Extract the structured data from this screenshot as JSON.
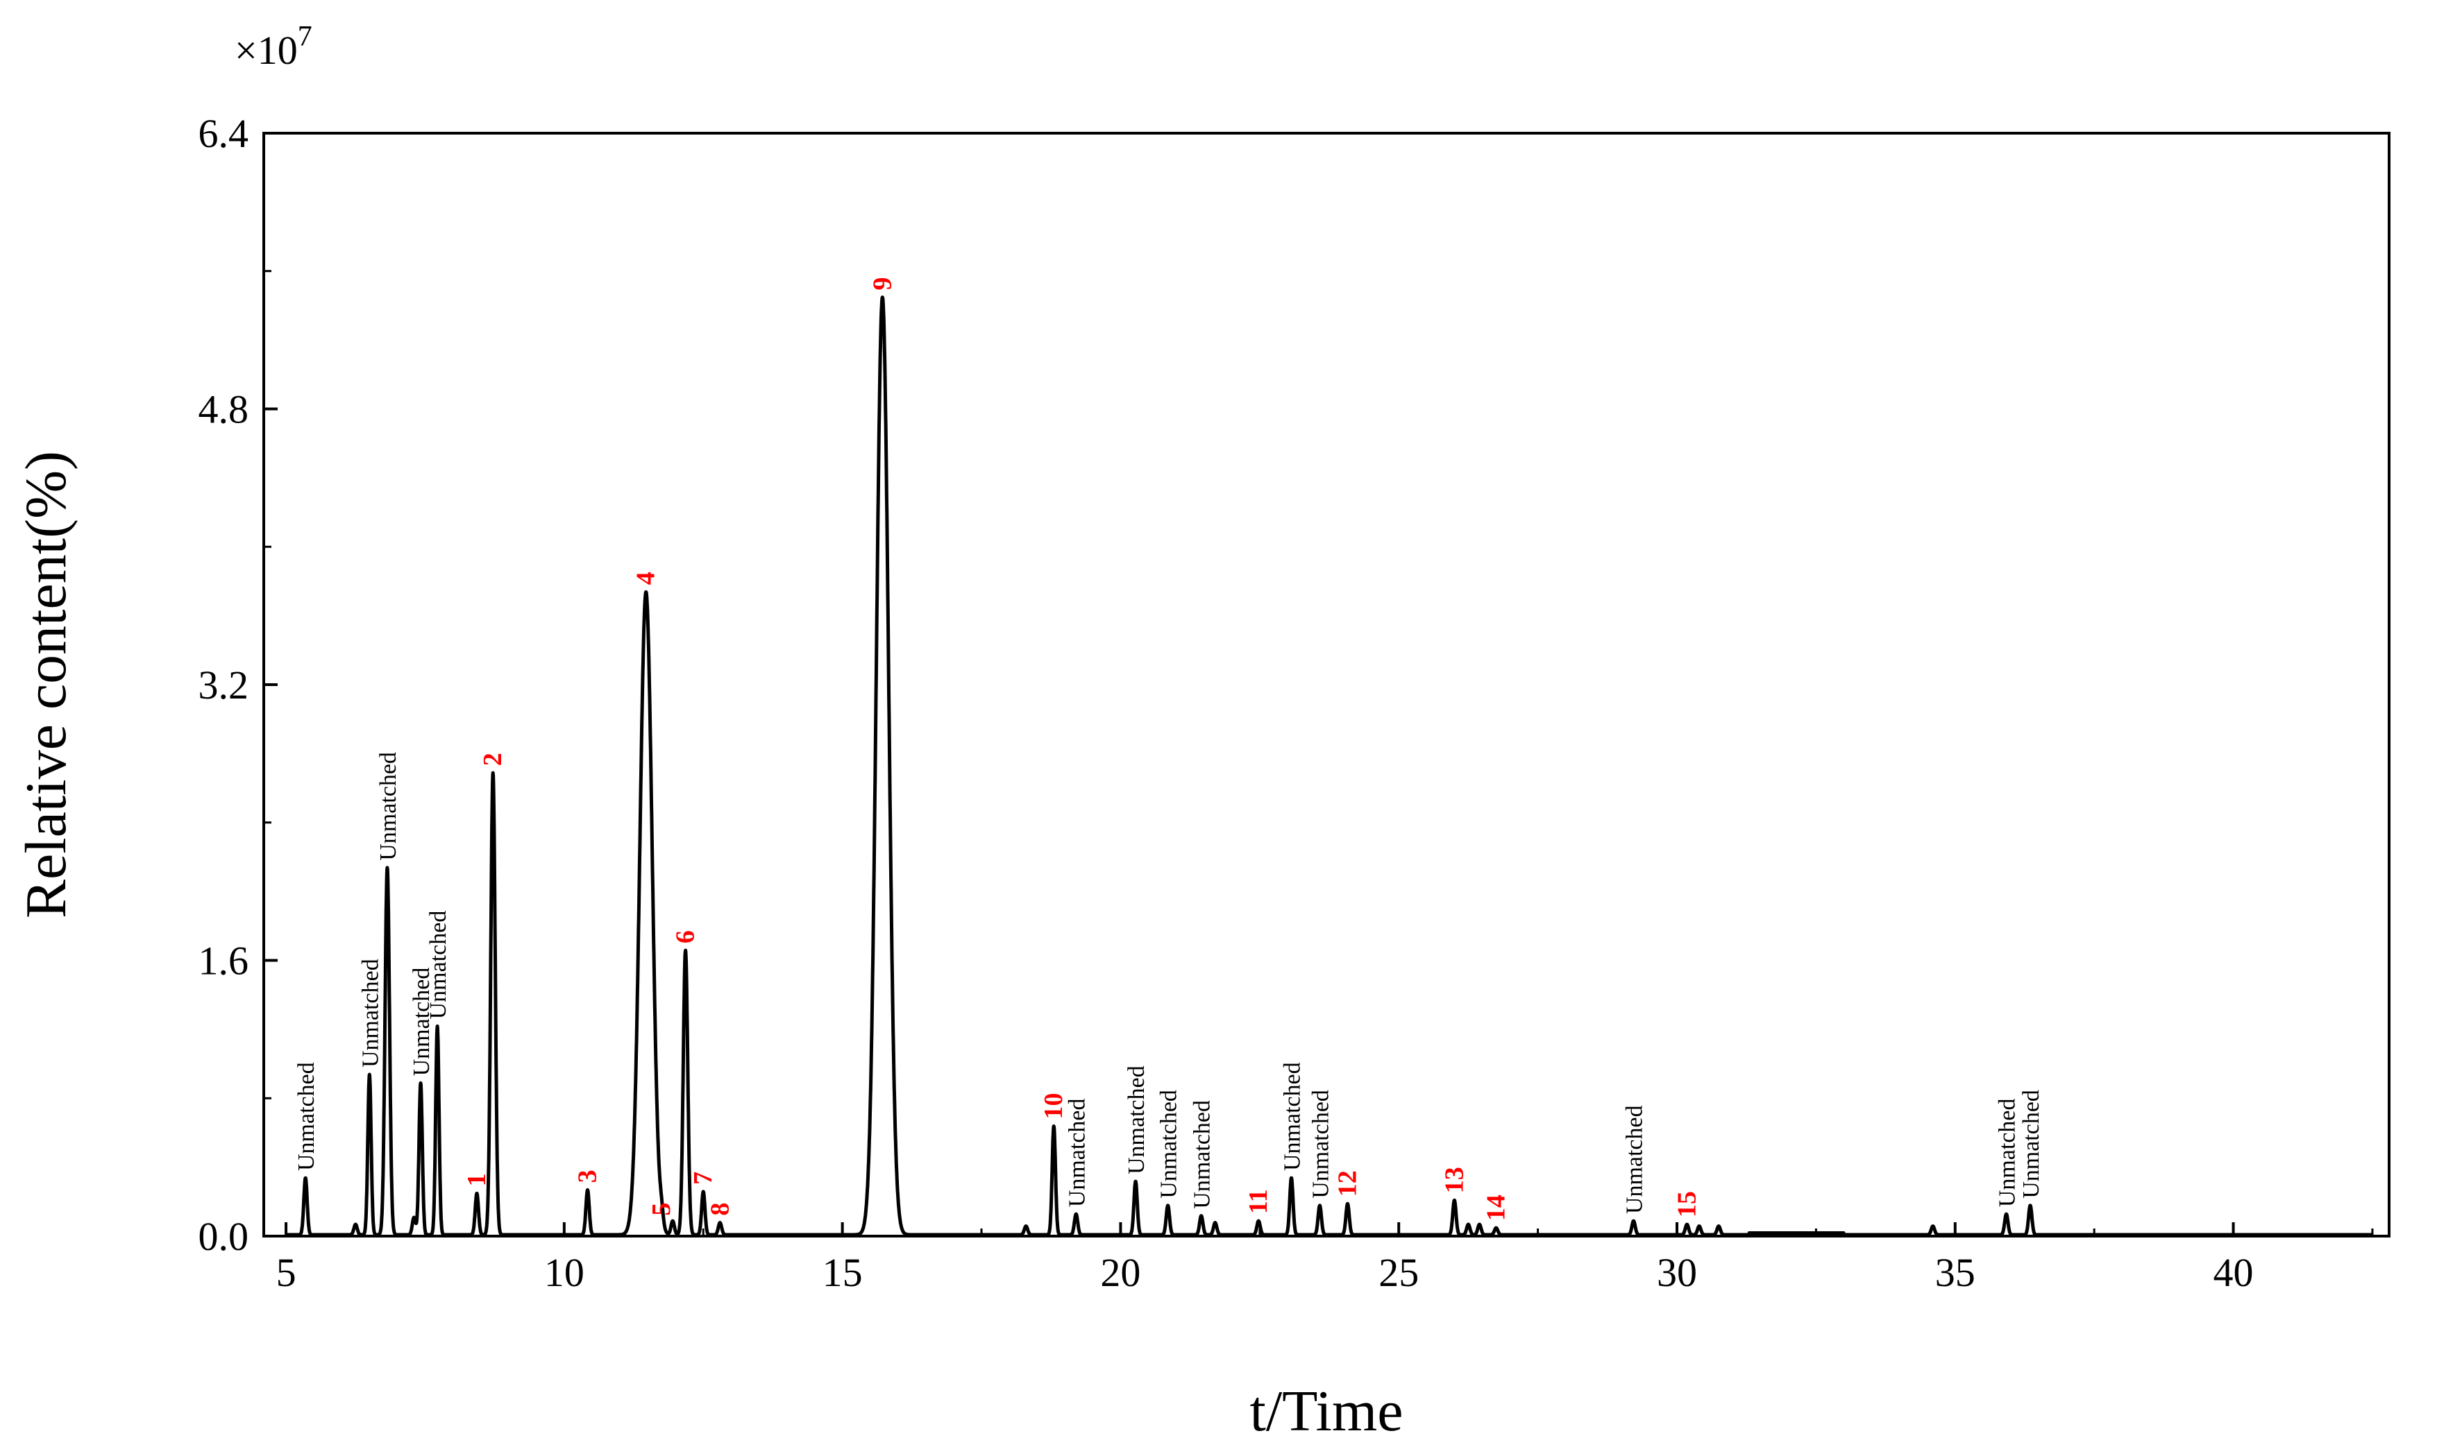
{
  "chart_data": {
    "type": "line",
    "title": "",
    "xlabel": "t/Time",
    "ylabel": "Relative content(%)",
    "y_multiplier_label": "×10",
    "y_multiplier_exponent": "7",
    "xlim": [
      4.6,
      42.8
    ],
    "ylim": [
      0,
      6.4
    ],
    "x_ticks": [
      5,
      10,
      15,
      20,
      25,
      30,
      35,
      40
    ],
    "x_tick_labels": [
      "5",
      "10",
      "15",
      "20",
      "25",
      "30",
      "35",
      "40"
    ],
    "y_ticks": [
      0,
      1.6,
      3.2,
      4.8,
      6.4
    ],
    "y_tick_labels": [
      "0.0",
      "1.6",
      "3.2",
      "4.8",
      "6.4"
    ],
    "grid": false,
    "line_color": "#000000",
    "annotation_color_numbered": "#ff0000",
    "annotation_color_unmatched": "#000000",
    "series": [
      {
        "peaks": [
          {
            "x": 5.35,
            "y": 0.33,
            "label": "Unmatched",
            "kind": "text"
          },
          {
            "x": 6.25,
            "y": 0.06,
            "label": "",
            "kind": ""
          },
          {
            "x": 6.5,
            "y": 0.93,
            "label": "Unmatched",
            "kind": "text"
          },
          {
            "x": 6.82,
            "y": 2.13,
            "label": "Unmatched",
            "kind": "text"
          },
          {
            "x": 7.3,
            "y": 0.1,
            "label": "",
            "kind": ""
          },
          {
            "x": 7.42,
            "y": 0.88,
            "label": "Unmatched",
            "kind": "text"
          },
          {
            "x": 7.72,
            "y": 1.21,
            "label": "Unmatched",
            "kind": "text"
          },
          {
            "x": 8.43,
            "y": 0.24,
            "label": "1",
            "kind": "number"
          },
          {
            "x": 8.72,
            "y": 2.68,
            "label": "2",
            "kind": "number"
          },
          {
            "x": 10.42,
            "y": 0.26,
            "label": "3",
            "kind": "number"
          },
          {
            "x": 11.47,
            "y": 3.73,
            "label": "4",
            "kind": "number"
          },
          {
            "x": 11.75,
            "y": 0.07,
            "label": "5",
            "kind": "number"
          },
          {
            "x": 11.95,
            "y": 0.08,
            "label": "",
            "kind": ""
          },
          {
            "x": 12.18,
            "y": 1.65,
            "label": "6",
            "kind": "number"
          },
          {
            "x": 12.5,
            "y": 0.25,
            "label": "7",
            "kind": "number"
          },
          {
            "x": 12.8,
            "y": 0.07,
            "label": "8",
            "kind": "number"
          },
          {
            "x": 15.72,
            "y": 5.44,
            "label": "9",
            "kind": "number"
          },
          {
            "x": 18.3,
            "y": 0.05,
            "label": "",
            "kind": ""
          },
          {
            "x": 18.8,
            "y": 0.63,
            "label": "10",
            "kind": "number"
          },
          {
            "x": 19.2,
            "y": 0.12,
            "label": "Unmatched",
            "kind": "text"
          },
          {
            "x": 20.27,
            "y": 0.31,
            "label": "Unmatched",
            "kind": "text"
          },
          {
            "x": 20.85,
            "y": 0.17,
            "label": "Unmatched",
            "kind": "text"
          },
          {
            "x": 21.45,
            "y": 0.11,
            "label": "Unmatched",
            "kind": "text"
          },
          {
            "x": 21.7,
            "y": 0.07,
            "label": "",
            "kind": ""
          },
          {
            "x": 22.48,
            "y": 0.08,
            "label": "11",
            "kind": "number"
          },
          {
            "x": 23.07,
            "y": 0.33,
            "label": "Unmatched",
            "kind": "text"
          },
          {
            "x": 23.58,
            "y": 0.17,
            "label": "Unmatched",
            "kind": "text"
          },
          {
            "x": 24.08,
            "y": 0.18,
            "label": "12",
            "kind": "number"
          },
          {
            "x": 26.0,
            "y": 0.2,
            "label": "13",
            "kind": "number"
          },
          {
            "x": 26.25,
            "y": 0.06,
            "label": "",
            "kind": ""
          },
          {
            "x": 26.45,
            "y": 0.06,
            "label": "",
            "kind": ""
          },
          {
            "x": 26.75,
            "y": 0.04,
            "label": "14",
            "kind": "number"
          },
          {
            "x": 29.22,
            "y": 0.08,
            "label": "Unmatched",
            "kind": "text"
          },
          {
            "x": 30.18,
            "y": 0.06,
            "label": "15",
            "kind": "number"
          },
          {
            "x": 30.4,
            "y": 0.05,
            "label": "",
            "kind": ""
          },
          {
            "x": 30.75,
            "y": 0.05,
            "label": "",
            "kind": ""
          },
          {
            "x": 34.6,
            "y": 0.05,
            "label": "",
            "kind": ""
          },
          {
            "x": 35.92,
            "y": 0.12,
            "label": "Unmatched",
            "kind": "text"
          },
          {
            "x": 36.35,
            "y": 0.17,
            "label": "Unmatched",
            "kind": "text"
          }
        ]
      }
    ]
  }
}
